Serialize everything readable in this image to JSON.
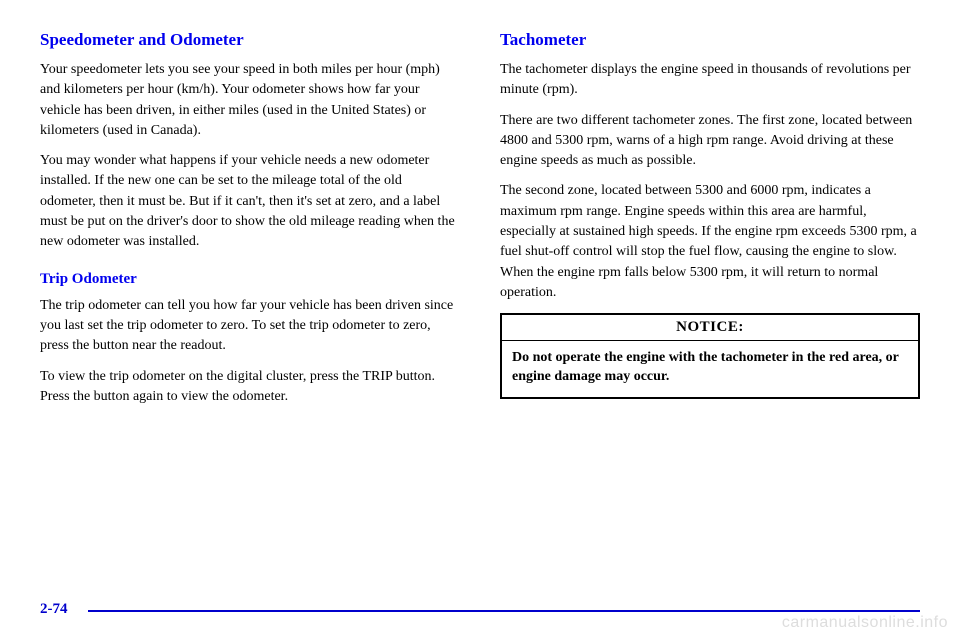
{
  "left": {
    "heading1": "Speedometer and Odometer",
    "p1": "Your speedometer lets you see your speed in both miles per hour (mph) and kilometers per hour (km/h). Your odometer shows how far your vehicle has been driven, in either miles (used in the United States) or kilometers (used in Canada).",
    "p2": "You may wonder what happens if your vehicle needs a new odometer installed. If the new one can be set to the mileage total of the old odometer, then it must be. But if it can't, then it's set at zero, and a label must be put on the driver's door to show the old mileage reading when the new odometer was installed.",
    "heading2": "Trip Odometer",
    "p3": "The trip odometer can tell you how far your vehicle has been driven since you last set the trip odometer to zero. To set the trip odometer to zero, press the button near the readout.",
    "p4": "To view the trip odometer on the digital cluster, press the TRIP button. Press the button again to view the odometer."
  },
  "right": {
    "heading1": "Tachometer",
    "p1": "The tachometer displays the engine speed in thousands of revolutions per minute (rpm).",
    "p2": "There are two different tachometer zones. The first zone, located between 4800 and 5300 rpm, warns of a high rpm range. Avoid driving at these engine speeds as much as possible.",
    "p3": "The second zone, located between 5300 and 6000 rpm, indicates a maximum rpm range. Engine speeds within this area are harmful, especially at sustained high speeds. If the engine rpm exceeds 5300 rpm, a fuel shut-off control will stop the fuel flow, causing the engine to slow. When the engine rpm falls below 5300 rpm, it will return to normal operation.",
    "notice_title": "NOTICE:",
    "notice_body": "Do not operate the engine with the tachometer in the red area, or engine damage may occur."
  },
  "page_number": "2-74",
  "watermark": "carmanualsonline.info"
}
